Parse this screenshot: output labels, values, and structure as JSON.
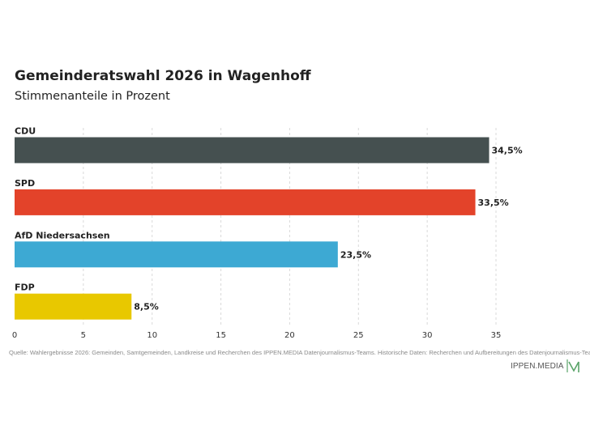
{
  "header": {
    "title": "Gemeinderatswahl 2026 in Wagenhoff",
    "subtitle": "Stimmenanteile in Prozent"
  },
  "footer": {
    "source": "Quelle: Wahlergebnisse 2026: Gemeinden, Samtgemeinden, Landkreise und Recherchen des IPPEN.MEDIA Datenjournalismus-Teams. Historische Daten: Recherchen und Aufbereitungen des Datenjournalismus-Teams",
    "logo_text": "IPPEN.MEDIA",
    "logo_icon": "ippen-media-logo-icon",
    "logo_color": "#5aa469"
  },
  "chart_data": {
    "type": "bar",
    "orientation": "horizontal",
    "title": "Gemeinderatswahl 2026 in Wagenhoff",
    "subtitle": "Stimmenanteile in Prozent",
    "categories": [
      "CDU",
      "SPD",
      "AfD Niedersachsen",
      "FDP"
    ],
    "values": [
      34.5,
      33.5,
      23.5,
      8.5
    ],
    "value_labels": [
      "34,5%",
      "33,5%",
      "23,5%",
      "8,5%"
    ],
    "colors": [
      "#455050",
      "#e3432a",
      "#3da9d3",
      "#e8c800"
    ],
    "xlim": [
      0,
      35
    ],
    "xticks": [
      0,
      5,
      10,
      15,
      20,
      25,
      30,
      35
    ],
    "grid": "vertical-dashed",
    "legend": "none"
  }
}
